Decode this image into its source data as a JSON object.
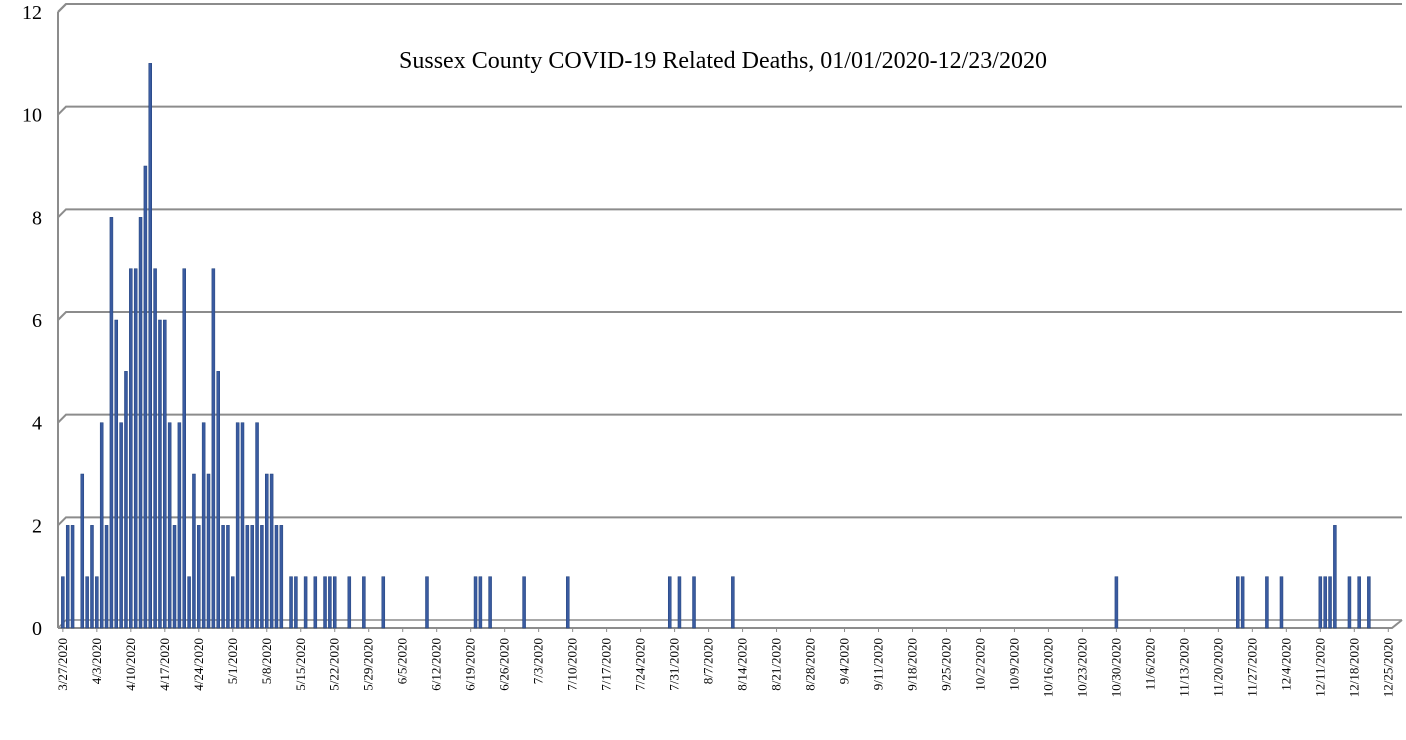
{
  "chart_data": {
    "type": "bar",
    "title": "Sussex County COVID-19 Related Deaths, 01/01/2020-12/23/2020",
    "xlabel": "",
    "ylabel": "",
    "ylim": [
      0,
      12
    ],
    "yticks": [
      0,
      2,
      4,
      6,
      8,
      10,
      12
    ],
    "grid": true,
    "legend": "none",
    "bar_color": "#3a5ba0",
    "bar_edge_color": "#1f3f7a",
    "grid_color": "#8c8c8c",
    "xlim": [
      "2020-03-26",
      "2020-12-27"
    ],
    "x_tick_labels": [
      "3/27/2020",
      "4/3/2020",
      "4/10/2020",
      "4/17/2020",
      "4/24/2020",
      "5/1/2020",
      "5/8/2020",
      "5/15/2020",
      "5/22/2020",
      "5/29/2020",
      "6/5/2020",
      "6/12/2020",
      "6/19/2020",
      "6/26/2020",
      "7/3/2020",
      "7/10/2020",
      "7/17/2020",
      "7/24/2020",
      "7/31/2020",
      "8/7/2020",
      "8/14/2020",
      "8/21/2020",
      "8/28/2020",
      "9/4/2020",
      "9/11/2020",
      "9/18/2020",
      "9/25/2020",
      "10/2/2020",
      "10/9/2020",
      "10/16/2020",
      "10/23/2020",
      "10/30/2020",
      "11/6/2020",
      "11/13/2020",
      "11/20/2020",
      "11/27/2020",
      "12/4/2020",
      "12/11/2020",
      "12/18/2020",
      "12/25/2020"
    ],
    "x_tick_dates": [
      "2020-03-27",
      "2020-04-03",
      "2020-04-10",
      "2020-04-17",
      "2020-04-24",
      "2020-05-01",
      "2020-05-08",
      "2020-05-15",
      "2020-05-22",
      "2020-05-29",
      "2020-06-05",
      "2020-06-12",
      "2020-06-19",
      "2020-06-26",
      "2020-07-03",
      "2020-07-10",
      "2020-07-17",
      "2020-07-24",
      "2020-07-31",
      "2020-08-07",
      "2020-08-14",
      "2020-08-21",
      "2020-08-28",
      "2020-09-04",
      "2020-09-11",
      "2020-09-18",
      "2020-09-25",
      "2020-10-02",
      "2020-10-09",
      "2020-10-16",
      "2020-10-23",
      "2020-10-30",
      "2020-11-06",
      "2020-11-13",
      "2020-11-20",
      "2020-11-27",
      "2020-12-04",
      "2020-12-11",
      "2020-12-18",
      "2020-12-25"
    ],
    "points": [
      {
        "date": "2020-03-27",
        "value": 1
      },
      {
        "date": "2020-03-28",
        "value": 2
      },
      {
        "date": "2020-03-29",
        "value": 2
      },
      {
        "date": "2020-03-31",
        "value": 3
      },
      {
        "date": "2020-04-01",
        "value": 1
      },
      {
        "date": "2020-04-02",
        "value": 2
      },
      {
        "date": "2020-04-03",
        "value": 1
      },
      {
        "date": "2020-04-04",
        "value": 4
      },
      {
        "date": "2020-04-05",
        "value": 2
      },
      {
        "date": "2020-04-06",
        "value": 8
      },
      {
        "date": "2020-04-07",
        "value": 6
      },
      {
        "date": "2020-04-08",
        "value": 4
      },
      {
        "date": "2020-04-09",
        "value": 5
      },
      {
        "date": "2020-04-10",
        "value": 7
      },
      {
        "date": "2020-04-11",
        "value": 7
      },
      {
        "date": "2020-04-12",
        "value": 8
      },
      {
        "date": "2020-04-13",
        "value": 9
      },
      {
        "date": "2020-04-14",
        "value": 11
      },
      {
        "date": "2020-04-15",
        "value": 7
      },
      {
        "date": "2020-04-16",
        "value": 6
      },
      {
        "date": "2020-04-17",
        "value": 6
      },
      {
        "date": "2020-04-18",
        "value": 4
      },
      {
        "date": "2020-04-19",
        "value": 2
      },
      {
        "date": "2020-04-20",
        "value": 4
      },
      {
        "date": "2020-04-21",
        "value": 7
      },
      {
        "date": "2020-04-22",
        "value": 1
      },
      {
        "date": "2020-04-23",
        "value": 3
      },
      {
        "date": "2020-04-24",
        "value": 2
      },
      {
        "date": "2020-04-25",
        "value": 4
      },
      {
        "date": "2020-04-26",
        "value": 3
      },
      {
        "date": "2020-04-27",
        "value": 7
      },
      {
        "date": "2020-04-28",
        "value": 5
      },
      {
        "date": "2020-04-29",
        "value": 2
      },
      {
        "date": "2020-04-30",
        "value": 2
      },
      {
        "date": "2020-05-01",
        "value": 1
      },
      {
        "date": "2020-05-02",
        "value": 4
      },
      {
        "date": "2020-05-03",
        "value": 4
      },
      {
        "date": "2020-05-04",
        "value": 2
      },
      {
        "date": "2020-05-05",
        "value": 2
      },
      {
        "date": "2020-05-06",
        "value": 4
      },
      {
        "date": "2020-05-07",
        "value": 2
      },
      {
        "date": "2020-05-08",
        "value": 3
      },
      {
        "date": "2020-05-09",
        "value": 3
      },
      {
        "date": "2020-05-10",
        "value": 2
      },
      {
        "date": "2020-05-11",
        "value": 2
      },
      {
        "date": "2020-05-13",
        "value": 1
      },
      {
        "date": "2020-05-14",
        "value": 1
      },
      {
        "date": "2020-05-16",
        "value": 1
      },
      {
        "date": "2020-05-18",
        "value": 1
      },
      {
        "date": "2020-05-20",
        "value": 1
      },
      {
        "date": "2020-05-21",
        "value": 1
      },
      {
        "date": "2020-05-22",
        "value": 1
      },
      {
        "date": "2020-05-25",
        "value": 1
      },
      {
        "date": "2020-05-28",
        "value": 1
      },
      {
        "date": "2020-06-01",
        "value": 1
      },
      {
        "date": "2020-06-10",
        "value": 1
      },
      {
        "date": "2020-06-20",
        "value": 1
      },
      {
        "date": "2020-06-21",
        "value": 1
      },
      {
        "date": "2020-06-23",
        "value": 1
      },
      {
        "date": "2020-06-30",
        "value": 1
      },
      {
        "date": "2020-07-09",
        "value": 1
      },
      {
        "date": "2020-07-30",
        "value": 1
      },
      {
        "date": "2020-08-01",
        "value": 1
      },
      {
        "date": "2020-08-04",
        "value": 1
      },
      {
        "date": "2020-08-12",
        "value": 1
      },
      {
        "date": "2020-10-30",
        "value": 1
      },
      {
        "date": "2020-11-24",
        "value": 1
      },
      {
        "date": "2020-11-25",
        "value": 1
      },
      {
        "date": "2020-11-30",
        "value": 1
      },
      {
        "date": "2020-12-03",
        "value": 1
      },
      {
        "date": "2020-12-11",
        "value": 1
      },
      {
        "date": "2020-12-12",
        "value": 1
      },
      {
        "date": "2020-12-13",
        "value": 1
      },
      {
        "date": "2020-12-14",
        "value": 2
      },
      {
        "date": "2020-12-17",
        "value": 1
      },
      {
        "date": "2020-12-19",
        "value": 1
      },
      {
        "date": "2020-12-21",
        "value": 1
      }
    ]
  }
}
